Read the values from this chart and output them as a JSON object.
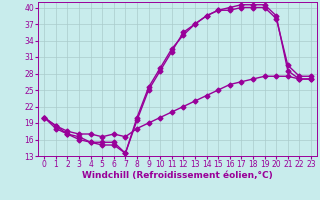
{
  "xlabel": "Windchill (Refroidissement éolien,°C)",
  "background_color": "#c8ecec",
  "grid_color": "#aacccc",
  "line_color": "#990099",
  "xlim": [
    -0.5,
    23.5
  ],
  "ylim": [
    13,
    41
  ],
  "yticks": [
    13,
    16,
    19,
    22,
    25,
    28,
    31,
    34,
    37,
    40
  ],
  "xticks": [
    0,
    1,
    2,
    3,
    4,
    5,
    6,
    7,
    8,
    9,
    10,
    11,
    12,
    13,
    14,
    15,
    16,
    17,
    18,
    19,
    20,
    21,
    22,
    23
  ],
  "line1_x": [
    0,
    1,
    2,
    3,
    4,
    5,
    6,
    7,
    8,
    9,
    10,
    11,
    12,
    13,
    14,
    15,
    16,
    17,
    18,
    19,
    20,
    21,
    22,
    23
  ],
  "line1_y": [
    20,
    18.5,
    17,
    16.5,
    15.5,
    15.5,
    15.5,
    13.5,
    19.5,
    25,
    28.5,
    32,
    35.5,
    37,
    38.5,
    39.5,
    39.5,
    40,
    40,
    40,
    38,
    29.5,
    27.5,
    27.5
  ],
  "line2_x": [
    0,
    1,
    2,
    3,
    4,
    5,
    6,
    7,
    8,
    9,
    10,
    11,
    12,
    13,
    14,
    15,
    16,
    17,
    18,
    19,
    20,
    21,
    22,
    23
  ],
  "line2_y": [
    20,
    18.5,
    17.5,
    17,
    17,
    16.5,
    17,
    16.5,
    18,
    19,
    20,
    21,
    22,
    23,
    24,
    25,
    26,
    26.5,
    27,
    27.5,
    27.5,
    27.5,
    27,
    27
  ],
  "line3_x": [
    0,
    1,
    2,
    3,
    4,
    5,
    6,
    7,
    8,
    9,
    10,
    11,
    12,
    13,
    14,
    15,
    16,
    17,
    18,
    19,
    20,
    21,
    22,
    23
  ],
  "line3_y": [
    20,
    18,
    17,
    16,
    15.5,
    15,
    15,
    13.5,
    20,
    25.5,
    29,
    32.5,
    35,
    37,
    38.5,
    39.5,
    40,
    40.5,
    40.5,
    40.5,
    38.5,
    28.5,
    27,
    27
  ],
  "marker": "D",
  "markersize": 2.5,
  "linewidth": 1.0,
  "tick_fontsize": 5.5,
  "xlabel_fontsize": 6.5
}
